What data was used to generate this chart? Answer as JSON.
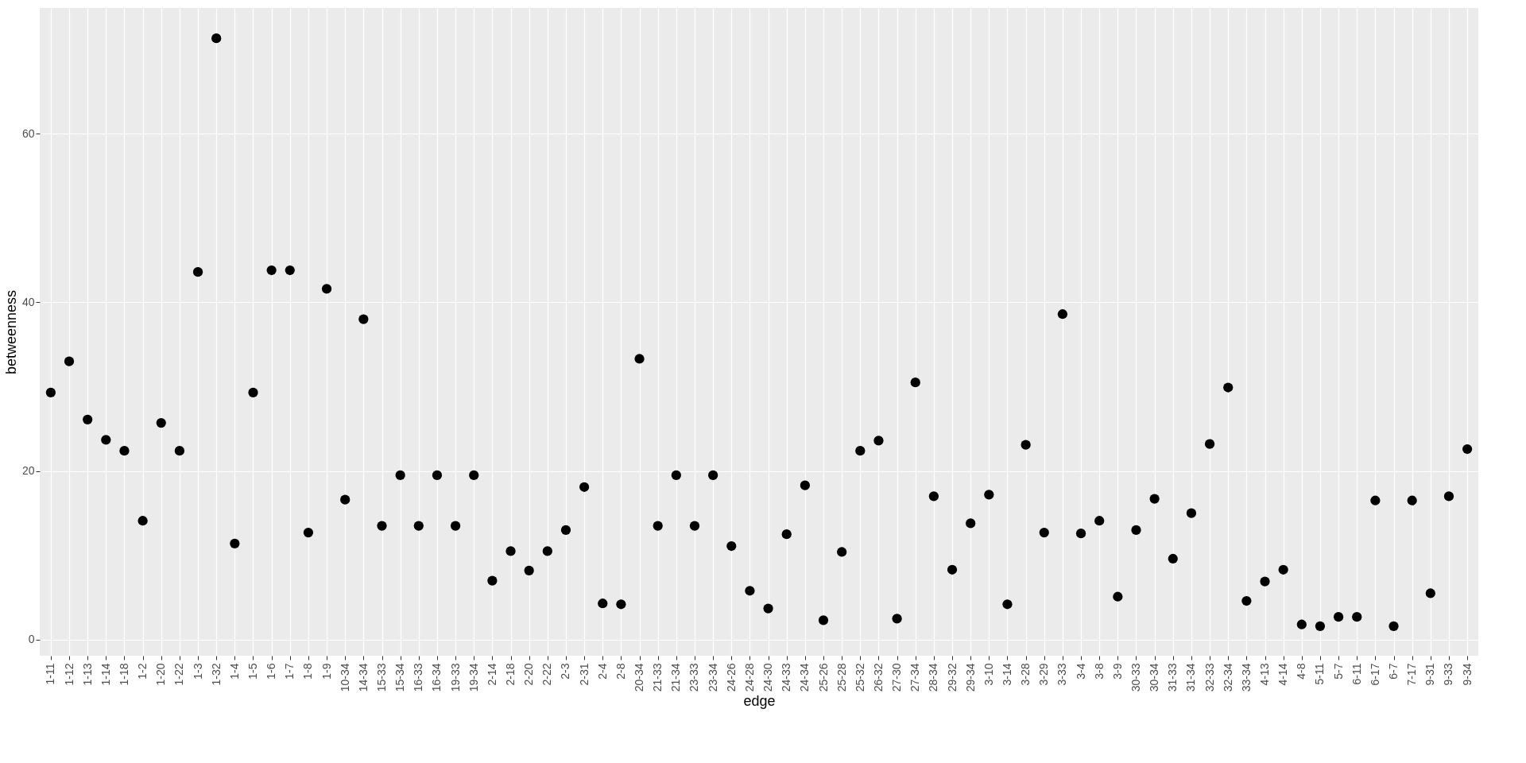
{
  "chart_data": {
    "type": "scatter",
    "xlabel": "edge",
    "ylabel": "betweenness",
    "categories": [
      "1-11",
      "1-12",
      "1-13",
      "1-14",
      "1-18",
      "1-2",
      "1-20",
      "1-22",
      "1-3",
      "1-32",
      "1-4",
      "1-5",
      "1-6",
      "1-7",
      "1-8",
      "1-9",
      "10-34",
      "14-34",
      "15-33",
      "15-34",
      "16-33",
      "16-34",
      "19-33",
      "19-34",
      "2-14",
      "2-18",
      "2-20",
      "2-22",
      "2-3",
      "2-31",
      "2-4",
      "2-8",
      "20-34",
      "21-33",
      "21-34",
      "23-33",
      "23-34",
      "24-26",
      "24-28",
      "24-30",
      "24-33",
      "24-34",
      "25-26",
      "25-28",
      "25-32",
      "26-32",
      "27-30",
      "27-34",
      "28-34",
      "29-32",
      "29-34",
      "3-10",
      "3-14",
      "3-28",
      "3-29",
      "3-33",
      "3-4",
      "3-8",
      "3-9",
      "30-33",
      "30-34",
      "31-33",
      "31-34",
      "32-33",
      "32-34",
      "33-34",
      "4-13",
      "4-14",
      "4-8",
      "5-11",
      "5-7",
      "6-11",
      "6-17",
      "6-7",
      "7-17",
      "9-31",
      "9-33",
      "9-34"
    ],
    "series": [
      {
        "color": "#000000",
        "values": [
          29.3,
          33.0,
          26.1,
          23.7,
          22.4,
          14.1,
          25.7,
          22.4,
          43.6,
          71.3,
          11.4,
          29.3,
          43.8,
          43.8,
          12.7,
          41.6,
          16.6,
          38.0,
          13.5,
          19.5,
          13.5,
          19.5,
          13.5,
          19.5,
          7.0,
          10.5,
          8.2,
          10.5,
          13.0,
          18.1,
          4.3,
          4.2,
          33.3,
          13.5,
          19.5,
          13.5,
          19.5,
          11.1,
          5.8,
          3.7,
          12.5,
          18.3,
          2.3,
          10.4,
          22.4,
          23.6,
          2.5,
          30.5,
          17.0,
          8.3,
          13.8,
          17.2,
          4.2,
          23.1,
          12.7,
          38.6,
          12.6,
          14.1,
          5.1,
          13.0,
          16.7,
          9.6,
          15.0,
          23.2,
          29.9,
          4.6,
          6.9,
          8.3,
          1.8,
          1.6,
          2.7,
          2.7,
          16.5,
          1.6,
          16.5,
          5.5,
          17.0,
          22.6
        ]
      }
    ],
    "ylim": [
      -1.9,
      74.9
    ],
    "yticks": [
      0,
      20,
      40,
      60
    ],
    "grid": true,
    "marker": "circle"
  }
}
